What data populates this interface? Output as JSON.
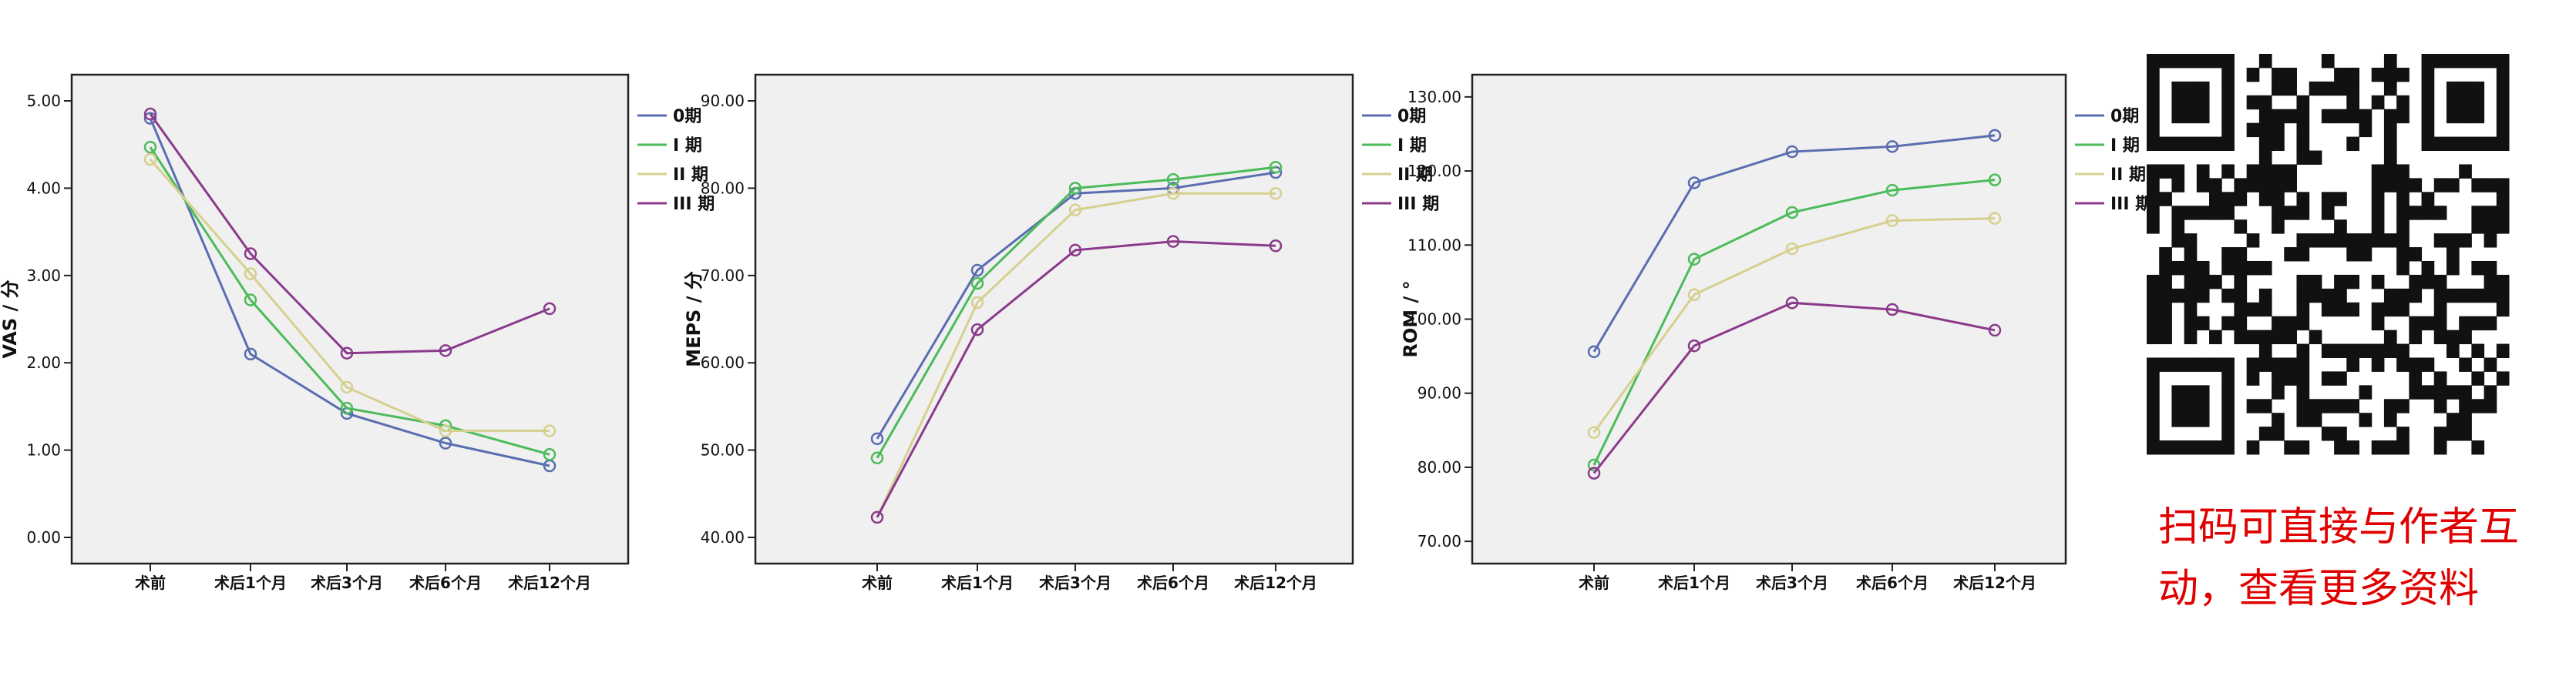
{
  "chart_data": [
    {
      "type": "line",
      "title": "",
      "xlabel": "",
      "ylabel": "VAS / 分",
      "ylim": [
        -0.3,
        5.3
      ],
      "yticks": [
        "0.00",
        "1.00",
        "2.00",
        "3.00",
        "4.00",
        "5.00"
      ],
      "ytick_values": [
        0,
        1,
        2,
        3,
        4,
        5
      ],
      "categories": [
        "术前",
        "术后1个月",
        "术后3个月",
        "术后6个月",
        "术后12个月"
      ],
      "grid": false,
      "legend": "right",
      "series": [
        {
          "name": "0期",
          "color": "#5a6db0",
          "values": [
            4.8,
            2.1,
            1.42,
            1.08,
            0.82
          ]
        },
        {
          "name": "I 期",
          "color": "#4cbb5a",
          "values": [
            4.47,
            2.72,
            1.48,
            1.28,
            0.95
          ]
        },
        {
          "name": "II 期",
          "color": "#d6d08f",
          "values": [
            4.33,
            3.02,
            1.72,
            1.22,
            1.22
          ]
        },
        {
          "name": "III 期",
          "color": "#8b3a8b",
          "values": [
            4.85,
            3.25,
            2.11,
            2.14,
            2.62
          ]
        }
      ]
    },
    {
      "type": "line",
      "title": "",
      "xlabel": "",
      "ylabel": "MEPS / 分",
      "ylim": [
        37,
        93
      ],
      "yticks": [
        "40.00",
        "50.00",
        "60.00",
        "70.00",
        "80.00",
        "90.00"
      ],
      "ytick_values": [
        40,
        50,
        60,
        70,
        80,
        90
      ],
      "categories": [
        "术前",
        "术后1个月",
        "术后3个月",
        "术后6个月",
        "术后12个月"
      ],
      "grid": false,
      "legend": "right",
      "series": [
        {
          "name": "0期",
          "color": "#5a6db0",
          "values": [
            51.3,
            70.6,
            79.4,
            80.0,
            81.8
          ]
        },
        {
          "name": "I 期",
          "color": "#4cbb5a",
          "values": [
            49.1,
            69.1,
            80.0,
            81.0,
            82.4
          ]
        },
        {
          "name": "II 期",
          "color": "#d6d08f",
          "values": [
            42.3,
            66.9,
            77.5,
            79.4,
            79.4
          ]
        },
        {
          "name": "III 期",
          "color": "#8b3a8b",
          "values": [
            42.3,
            63.8,
            72.9,
            73.9,
            73.4
          ]
        }
      ]
    },
    {
      "type": "line",
      "title": "",
      "xlabel": "",
      "ylabel": "ROM / °",
      "ylim": [
        67,
        133
      ],
      "yticks": [
        "70.00",
        "80.00",
        "90.00",
        "100.00",
        "110.00",
        "120.00",
        "130.00"
      ],
      "ytick_values": [
        70,
        80,
        90,
        100,
        110,
        120,
        130
      ],
      "categories": [
        "术前",
        "术后1个月",
        "术后3个月",
        "术后6个月",
        "术后12个月"
      ],
      "grid": false,
      "legend": "right",
      "series": [
        {
          "name": "0期",
          "color": "#5a6db0",
          "values": [
            95.6,
            118.4,
            122.6,
            123.3,
            124.8
          ]
        },
        {
          "name": "I 期",
          "color": "#4cbb5a",
          "values": [
            80.3,
            108.1,
            114.4,
            117.4,
            118.8
          ]
        },
        {
          "name": "II 期",
          "color": "#d6d08f",
          "values": [
            84.7,
            103.3,
            109.5,
            113.3,
            113.6
          ]
        },
        {
          "name": "III 期",
          "color": "#8b3a8b",
          "values": [
            79.2,
            96.4,
            102.2,
            101.3,
            98.5
          ]
        }
      ]
    }
  ],
  "qr_icon": "qr-code-icon",
  "promo": {
    "line1": "扫码可直接与作者互",
    "line2": "动，查看更多资料",
    "color": "#e00000"
  }
}
